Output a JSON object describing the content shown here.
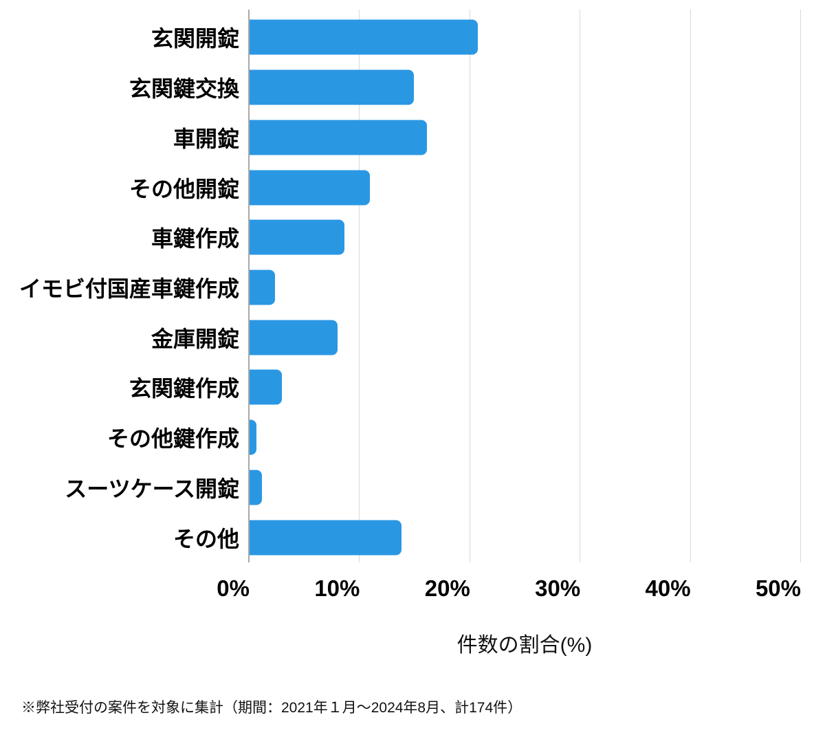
{
  "chart_data": {
    "type": "bar",
    "orientation": "horizontal",
    "title": "",
    "xlabel": "件数の割合(%)",
    "ylabel": "",
    "categories": [
      "玄関開錠",
      "玄関鍵交換",
      "車開錠",
      "その他開錠",
      "車鍵作成",
      "イモビ付国産車鍵作成",
      "金庫開錠",
      "玄関鍵作成",
      "その他鍵作成",
      "スーツケース開錠",
      "その他"
    ],
    "values": [
      20.7,
      14.9,
      16.1,
      10.9,
      8.6,
      2.3,
      8.0,
      2.9,
      0.6,
      1.1,
      13.8
    ],
    "x_ticks": [
      "0%",
      "10%",
      "20%",
      "30%",
      "40%",
      "50%"
    ],
    "x_tick_values": [
      0,
      10,
      20,
      30,
      40,
      50
    ],
    "xlim": [
      0,
      50
    ],
    "grid": "vertical-only",
    "legend": "none",
    "bar_color": "#2A97E3",
    "gridline_color": "#D9D9D9",
    "axis_line_color": "#A9A9A9",
    "label_color": "#000000"
  },
  "footnote": "※弊社受付の案件を対象に集計（期間：2021年１月〜2024年8月、計174件）"
}
